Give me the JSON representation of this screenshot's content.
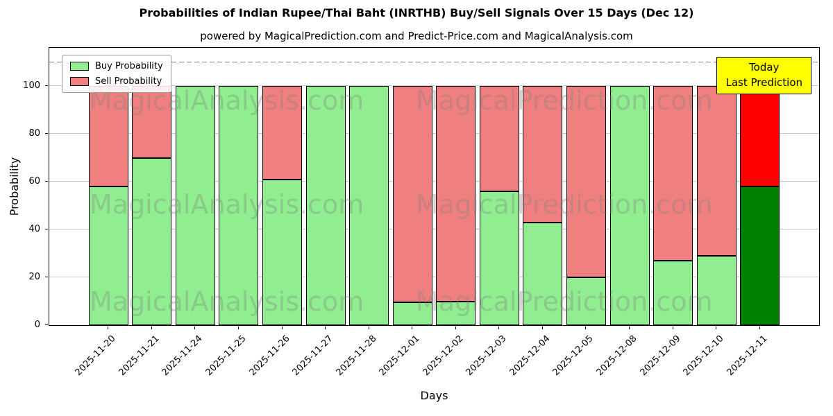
{
  "watermarks": {
    "left": "MagicalAnalysis.com",
    "right": "MagicalPrediction.com"
  },
  "annotation": {
    "lines": [
      "Today",
      "Last Prediction"
    ],
    "bg_color": "#ffff00"
  },
  "chart_data": {
    "type": "bar",
    "stacked": true,
    "title": "Probabilities of Indian Rupee/Thai Baht (INRTHB) Buy/Sell Signals Over 15 Days (Dec 12)",
    "subtitle": "powered by MagicalPrediction.com and Predict-Price.com and MagicalAnalysis.com",
    "xlabel": "Days",
    "ylabel": "Probability",
    "categories": [
      "2025-11-20",
      "2025-11-21",
      "2025-11-24",
      "2025-11-25",
      "2025-11-26",
      "2025-11-27",
      "2025-11-28",
      "2025-12-01",
      "2025-12-02",
      "2025-12-03",
      "2025-12-04",
      "2025-12-05",
      "2025-12-08",
      "2025-12-09",
      "2025-12-10",
      "2025-12-11"
    ],
    "series": [
      {
        "name": "Buy Probability",
        "color": "#90ee90",
        "today_color": "#008000",
        "values": [
          58,
          70,
          100,
          100,
          61,
          100,
          100,
          9.5,
          10,
          56,
          43,
          20,
          100,
          27,
          29,
          58
        ]
      },
      {
        "name": "Sell Probability",
        "color": "#f08080",
        "today_color": "#ff0000",
        "values": [
          42,
          30,
          0,
          0,
          39,
          0,
          0,
          90.5,
          90,
          44,
          57,
          80,
          0,
          73,
          71,
          42
        ]
      }
    ],
    "today_index": 15,
    "yticks": [
      0,
      20,
      40,
      60,
      80,
      100
    ],
    "ylim": [
      0,
      116
    ],
    "dashed_line_y": 110,
    "grid": true,
    "legend_position": "upper left",
    "bar_edge_color": "#000000"
  }
}
